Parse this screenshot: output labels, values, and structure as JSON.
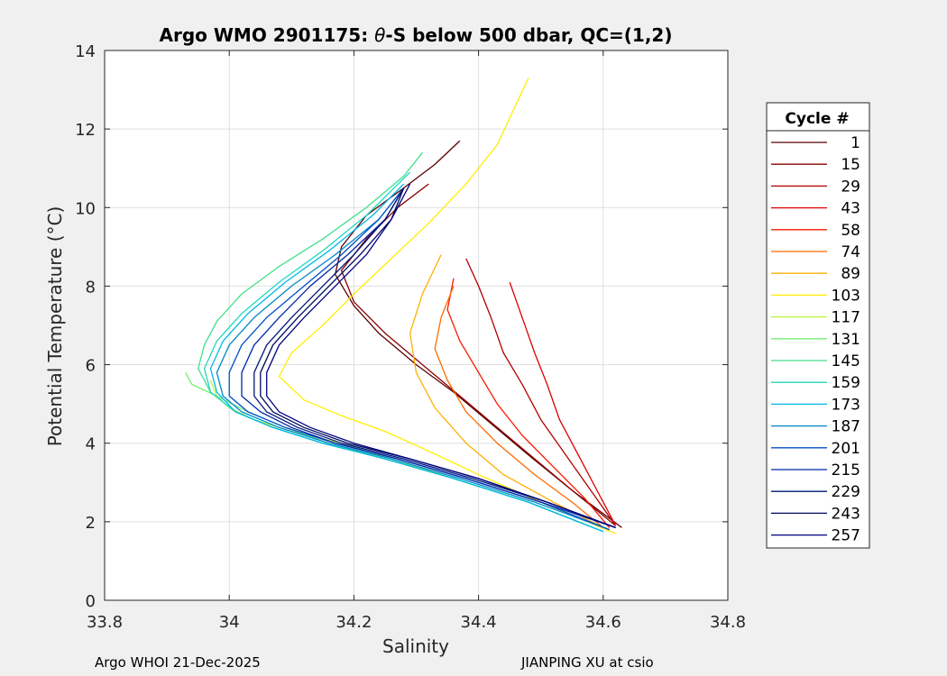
{
  "chart_data": {
    "type": "line",
    "title_prefix": "Argo WMO 2901175: ",
    "title_theta": "θ",
    "title_suffix": "-S below 500 dbar,  QC=(1,2)",
    "xlabel": "Salinity",
    "ylabel": "Potential Temperature (°C)",
    "xlim": [
      33.8,
      34.8
    ],
    "ylim": [
      0,
      14
    ],
    "xticks": [
      "33.8",
      "34",
      "34.2",
      "34.4",
      "34.6",
      "34.8"
    ],
    "yticks": [
      "0",
      "2",
      "4",
      "6",
      "8",
      "10",
      "12",
      "14"
    ],
    "grid": true,
    "legend": {
      "title": "Cycle #",
      "placement": "outside-right",
      "entries": [
        {
          "label": "1",
          "color": "#5a0000"
        },
        {
          "label": "15",
          "color": "#8a0000"
        },
        {
          "label": "29",
          "color": "#b40000"
        },
        {
          "label": "43",
          "color": "#dc0000"
        },
        {
          "label": "58",
          "color": "#f81a00"
        },
        {
          "label": "74",
          "color": "#ff6a00"
        },
        {
          "label": "89",
          "color": "#ffb000"
        },
        {
          "label": "103",
          "color": "#ffee00"
        },
        {
          "label": "117",
          "color": "#b8f43a"
        },
        {
          "label": "131",
          "color": "#78f070"
        },
        {
          "label": "145",
          "color": "#40e08c"
        },
        {
          "label": "159",
          "color": "#20d8c0"
        },
        {
          "label": "173",
          "color": "#00b8e8"
        },
        {
          "label": "187",
          "color": "#0088c8"
        },
        {
          "label": "201",
          "color": "#0050c8"
        },
        {
          "label": "215",
          "color": "#0028a8"
        },
        {
          "label": "229",
          "color": "#001878"
        },
        {
          "label": "243",
          "color": "#000858"
        },
        {
          "label": "257",
          "color": "#000080"
        }
      ]
    },
    "series": [
      {
        "name": "1",
        "color": "#5a0000",
        "salinity": [
          34.63,
          34.55,
          34.48,
          34.42,
          34.36,
          34.3,
          34.24,
          34.2,
          34.17,
          34.18,
          34.22,
          34.28,
          34.33,
          34.37
        ],
        "theta": [
          1.85,
          2.8,
          3.7,
          4.5,
          5.3,
          6.0,
          6.8,
          7.5,
          8.3,
          9.0,
          9.8,
          10.5,
          11.1,
          11.7
        ]
      },
      {
        "name": "15",
        "color": "#8a0000",
        "salinity": [
          34.62,
          34.55,
          34.49,
          34.43,
          34.37,
          34.31,
          34.25,
          34.2,
          34.18,
          34.22,
          34.27,
          34.32
        ],
        "theta": [
          1.9,
          2.8,
          3.6,
          4.4,
          5.2,
          6.0,
          6.8,
          7.6,
          8.4,
          9.2,
          10.0,
          10.6
        ]
      },
      {
        "name": "29",
        "color": "#b40000",
        "salinity": [
          34.62,
          34.58,
          34.54,
          34.5,
          34.47,
          34.44,
          34.42,
          34.4,
          34.38
        ],
        "theta": [
          1.9,
          2.8,
          3.7,
          4.6,
          5.5,
          6.3,
          7.2,
          8.0,
          8.7
        ]
      },
      {
        "name": "43",
        "color": "#dc0000",
        "salinity": [
          34.62,
          34.59,
          34.56,
          34.53,
          34.51,
          34.49,
          34.47,
          34.45
        ],
        "theta": [
          1.9,
          2.8,
          3.7,
          4.6,
          5.5,
          6.3,
          7.2,
          8.1
        ]
      },
      {
        "name": "58",
        "color": "#f81a00",
        "salinity": [
          34.61,
          34.57,
          34.52,
          34.47,
          34.43,
          34.4,
          34.37,
          34.35,
          34.36
        ],
        "theta": [
          1.85,
          2.6,
          3.4,
          4.2,
          5.0,
          5.8,
          6.6,
          7.4,
          8.2
        ]
      },
      {
        "name": "74",
        "color": "#ff6a00",
        "salinity": [
          34.6,
          34.55,
          34.49,
          34.43,
          34.38,
          34.35,
          34.33,
          34.34,
          34.36
        ],
        "theta": [
          1.85,
          2.5,
          3.2,
          4.0,
          4.8,
          5.6,
          6.4,
          7.2,
          8.0
        ]
      },
      {
        "name": "89",
        "color": "#ffb000",
        "salinity": [
          34.6,
          34.52,
          34.44,
          34.38,
          34.33,
          34.3,
          34.29,
          34.31,
          34.34
        ],
        "theta": [
          1.85,
          2.5,
          3.2,
          4.0,
          4.9,
          5.8,
          6.8,
          7.8,
          8.8
        ]
      },
      {
        "name": "103",
        "color": "#ffee00",
        "salinity": [
          34.62,
          34.5,
          34.4,
          34.32,
          34.25,
          34.18,
          34.12,
          34.08,
          34.1,
          34.15,
          34.2,
          34.26,
          34.32,
          34.38,
          34.43,
          34.48
        ],
        "theta": [
          1.7,
          2.5,
          3.2,
          3.8,
          4.3,
          4.7,
          5.1,
          5.7,
          6.3,
          7.0,
          7.8,
          8.7,
          9.6,
          10.6,
          11.6,
          13.3
        ]
      },
      {
        "name": "117",
        "color": "#b8f43a",
        "salinity": [
          34.6,
          34.48,
          34.36,
          34.26,
          34.18,
          34.1,
          34.04,
          34.0,
          33.98,
          33.97
        ],
        "theta": [
          1.75,
          2.5,
          3.1,
          3.6,
          4.0,
          4.3,
          4.6,
          4.9,
          5.2,
          5.6
        ]
      },
      {
        "name": "131",
        "color": "#78f070",
        "salinity": [
          34.6,
          34.48,
          34.36,
          34.25,
          34.16,
          34.09,
          34.03,
          33.98,
          33.94,
          33.93
        ],
        "theta": [
          1.75,
          2.5,
          3.1,
          3.6,
          4.0,
          4.4,
          4.8,
          5.2,
          5.5,
          5.8
        ]
      },
      {
        "name": "145",
        "color": "#40e08c",
        "salinity": [
          34.6,
          34.48,
          34.36,
          34.25,
          34.15,
          34.07,
          34.01,
          33.97,
          33.95,
          33.96,
          33.98,
          34.02,
          34.08,
          34.15,
          34.22,
          34.28,
          34.31
        ],
        "theta": [
          1.75,
          2.5,
          3.1,
          3.6,
          4.0,
          4.4,
          4.8,
          5.3,
          5.9,
          6.5,
          7.1,
          7.8,
          8.5,
          9.2,
          10.0,
          10.8,
          11.4
        ]
      },
      {
        "name": "159",
        "color": "#20d8c0",
        "salinity": [
          34.6,
          34.48,
          34.36,
          34.25,
          34.15,
          34.07,
          34.01,
          33.97,
          33.96,
          33.98,
          34.02,
          34.08,
          34.15,
          34.22,
          34.29
        ],
        "theta": [
          1.75,
          2.5,
          3.1,
          3.6,
          4.0,
          4.4,
          4.8,
          5.3,
          5.9,
          6.6,
          7.3,
          8.1,
          8.9,
          9.8,
          10.9
        ]
      },
      {
        "name": "173",
        "color": "#00b8e8",
        "salinity": [
          34.6,
          34.48,
          34.36,
          34.25,
          34.15,
          34.07,
          34.01,
          33.98,
          33.97,
          33.99,
          34.03,
          34.09,
          34.16,
          34.23,
          34.28
        ],
        "theta": [
          1.75,
          2.5,
          3.1,
          3.6,
          4.0,
          4.4,
          4.8,
          5.3,
          5.9,
          6.6,
          7.3,
          8.1,
          8.9,
          9.8,
          10.6
        ]
      },
      {
        "name": "187",
        "color": "#0088c8",
        "salinity": [
          34.61,
          34.49,
          34.37,
          34.26,
          34.16,
          34.08,
          34.02,
          33.99,
          33.98,
          34.0,
          34.04,
          34.1,
          34.17,
          34.24,
          34.28
        ],
        "theta": [
          1.8,
          2.5,
          3.1,
          3.6,
          4.0,
          4.4,
          4.8,
          5.2,
          5.8,
          6.5,
          7.2,
          8.0,
          8.8,
          9.7,
          10.5
        ]
      },
      {
        "name": "201",
        "color": "#0050c8",
        "salinity": [
          34.61,
          34.5,
          34.38,
          34.27,
          34.17,
          34.09,
          34.03,
          34.0,
          34.0,
          34.02,
          34.06,
          34.12,
          34.18,
          34.24,
          34.28
        ],
        "theta": [
          1.8,
          2.5,
          3.1,
          3.6,
          4.0,
          4.4,
          4.8,
          5.2,
          5.8,
          6.5,
          7.2,
          8.0,
          8.8,
          9.7,
          10.5
        ]
      },
      {
        "name": "215",
        "color": "#0028a8",
        "salinity": [
          34.62,
          34.5,
          34.38,
          34.27,
          34.17,
          34.1,
          34.05,
          34.02,
          34.02,
          34.04,
          34.08,
          34.13,
          34.19,
          34.25,
          34.28
        ],
        "theta": [
          1.85,
          2.5,
          3.1,
          3.6,
          4.0,
          4.4,
          4.8,
          5.2,
          5.8,
          6.5,
          7.2,
          8.0,
          8.8,
          9.7,
          10.5
        ]
      },
      {
        "name": "229",
        "color": "#001878",
        "salinity": [
          34.62,
          34.51,
          34.39,
          34.28,
          34.18,
          34.11,
          34.06,
          34.04,
          34.04,
          34.06,
          34.1,
          34.15,
          34.2,
          34.25,
          34.28
        ],
        "theta": [
          1.85,
          2.5,
          3.1,
          3.6,
          4.0,
          4.4,
          4.8,
          5.2,
          5.8,
          6.5,
          7.2,
          8.0,
          8.8,
          9.7,
          10.5
        ]
      },
      {
        "name": "243",
        "color": "#000858",
        "salinity": [
          34.62,
          34.51,
          34.4,
          34.29,
          34.19,
          34.12,
          34.07,
          34.05,
          34.05,
          34.07,
          34.11,
          34.16,
          34.21,
          34.26,
          34.28
        ],
        "theta": [
          1.85,
          2.5,
          3.1,
          3.6,
          4.0,
          4.4,
          4.8,
          5.2,
          5.8,
          6.5,
          7.2,
          8.0,
          8.8,
          9.7,
          10.5
        ]
      },
      {
        "name": "257",
        "color": "#000080",
        "salinity": [
          34.62,
          34.51,
          34.4,
          34.29,
          34.2,
          34.13,
          34.08,
          34.06,
          34.06,
          34.08,
          34.12,
          34.17,
          34.22,
          34.26,
          34.29
        ],
        "theta": [
          1.85,
          2.5,
          3.1,
          3.6,
          4.0,
          4.4,
          4.8,
          5.2,
          5.8,
          6.5,
          7.2,
          8.0,
          8.8,
          9.7,
          10.6
        ]
      }
    ]
  },
  "footer": {
    "left": "Argo WHOI 21-Dec-2025",
    "right": "JIANPING XU at csio"
  }
}
